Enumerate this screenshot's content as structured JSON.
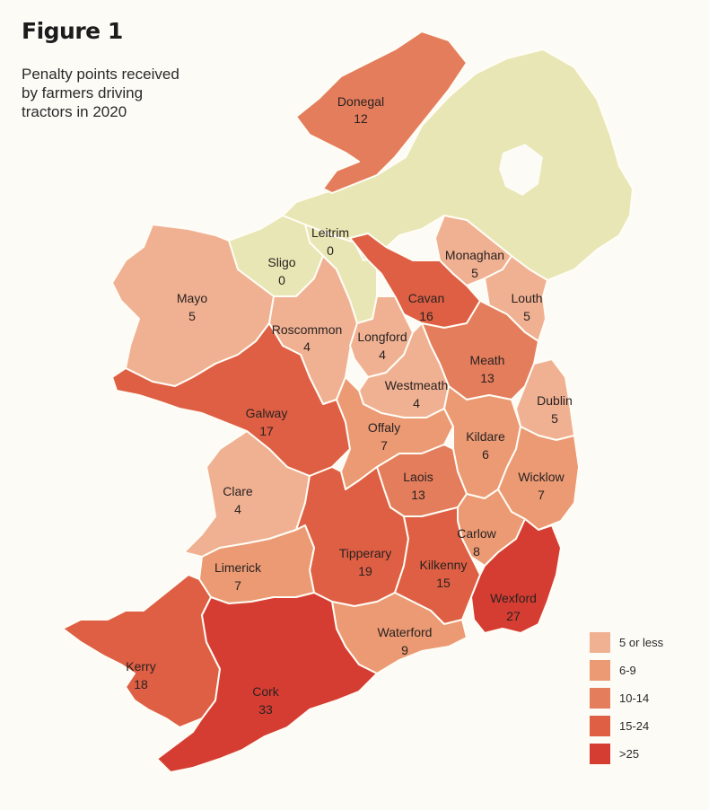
{
  "figure": {
    "title": "Figure 1",
    "subtitle_lines": [
      "Penalty points received",
      "by farmers driving",
      "tractors in 2020"
    ]
  },
  "colors": {
    "c1": "#f0b193",
    "c2": "#eb9a74",
    "c3": "#e47d5c",
    "c4": "#de5f44",
    "c5": "#d63d32",
    "zero": "#e8e6b4",
    "northern_ireland": "#e8e6b4",
    "border": "#fffdf5"
  },
  "legend": [
    {
      "label": "5 or less",
      "color": "c1"
    },
    {
      "label": "6-9",
      "color": "c2"
    },
    {
      "label": "10-14",
      "color": "c3"
    },
    {
      "label": "15-24",
      "color": "c4"
    },
    {
      "label": ">25",
      "color": "c5"
    }
  ],
  "counties": [
    {
      "id": "donegal",
      "name": "Donegal",
      "value": "12",
      "color": "c3"
    },
    {
      "id": "leitrim",
      "name": "Leitrim",
      "value": "0",
      "color": "zero"
    },
    {
      "id": "sligo",
      "name": "Sligo",
      "value": "0",
      "color": "zero"
    },
    {
      "id": "mayo",
      "name": "Mayo",
      "value": "5",
      "color": "c1"
    },
    {
      "id": "roscommon",
      "name": "Roscommon",
      "value": "4",
      "color": "c1"
    },
    {
      "id": "monaghan",
      "name": "Monaghan",
      "value": "5",
      "color": "c1"
    },
    {
      "id": "cavan",
      "name": "Cavan",
      "value": "16",
      "color": "c4"
    },
    {
      "id": "louth",
      "name": "Louth",
      "value": "5",
      "color": "c1"
    },
    {
      "id": "longford",
      "name": "Longford",
      "value": "4",
      "color": "c1"
    },
    {
      "id": "meath",
      "name": "Meath",
      "value": "13",
      "color": "c3"
    },
    {
      "id": "westmeath",
      "name": "Westmeath",
      "value": "4",
      "color": "c1"
    },
    {
      "id": "dublin",
      "name": "Dublin",
      "value": "5",
      "color": "c1"
    },
    {
      "id": "galway",
      "name": "Galway",
      "value": "17",
      "color": "c4"
    },
    {
      "id": "offaly",
      "name": "Offaly",
      "value": "7",
      "color": "c2"
    },
    {
      "id": "kildare",
      "name": "Kildare",
      "value": "6",
      "color": "c2"
    },
    {
      "id": "laois",
      "name": "Laois",
      "value": "13",
      "color": "c3"
    },
    {
      "id": "wicklow",
      "name": "Wicklow",
      "value": "7",
      "color": "c2"
    },
    {
      "id": "clare",
      "name": "Clare",
      "value": "4",
      "color": "c1"
    },
    {
      "id": "carlow",
      "name": "Carlow",
      "value": "8",
      "color": "c2"
    },
    {
      "id": "tipperary",
      "name": "Tipperary",
      "value": "19",
      "color": "c4"
    },
    {
      "id": "kilkenny",
      "name": "Kilkenny",
      "value": "15",
      "color": "c4"
    },
    {
      "id": "limerick",
      "name": "Limerick",
      "value": "7",
      "color": "c2"
    },
    {
      "id": "wexford",
      "name": "Wexford",
      "value": "27",
      "color": "c5"
    },
    {
      "id": "waterford",
      "name": "Waterford",
      "value": "9",
      "color": "c2"
    },
    {
      "id": "kerry",
      "name": "Kerry",
      "value": "18",
      "color": "c4"
    },
    {
      "id": "cork",
      "name": "Cork",
      "value": "33",
      "color": "c5"
    }
  ]
}
